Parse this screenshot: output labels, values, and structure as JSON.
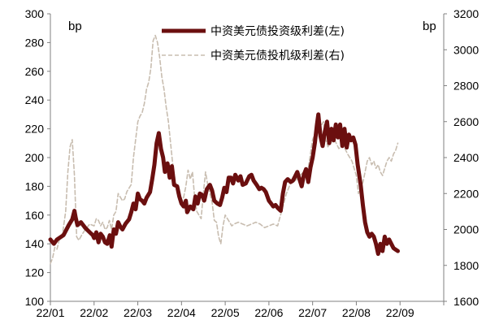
{
  "chart_data": {
    "type": "line",
    "left_unit": "bp",
    "right_unit": "bp",
    "left_axis": {
      "min": 100,
      "max": 300,
      "ticks": [
        100,
        120,
        140,
        160,
        180,
        200,
        220,
        240,
        260,
        280,
        300
      ]
    },
    "right_axis": {
      "min": 1600,
      "max": 3200,
      "ticks": [
        1600,
        1800,
        2000,
        2200,
        2400,
        2600,
        2800,
        3000,
        3200
      ]
    },
    "x_axis": {
      "min": 0,
      "max": 9,
      "ticks": [
        "22/01",
        "22/02",
        "22/03",
        "22/04",
        "22/05",
        "22/06",
        "22/07",
        "22/08",
        "22/09"
      ]
    },
    "legend_position": "top-center",
    "grid": false,
    "series": [
      {
        "name": "中资美元债投资级利差(左)",
        "axis": "left",
        "color": "#6b0f0f",
        "style": "solid",
        "points": [
          [
            0.0,
            143
          ],
          [
            0.08,
            140
          ],
          [
            0.15,
            143
          ],
          [
            0.3,
            146
          ],
          [
            0.42,
            153
          ],
          [
            0.5,
            157
          ],
          [
            0.55,
            163
          ],
          [
            0.58,
            158
          ],
          [
            0.62,
            153
          ],
          [
            0.7,
            155
          ],
          [
            0.8,
            151
          ],
          [
            0.9,
            148
          ],
          [
            0.97,
            146
          ],
          [
            1.0,
            144
          ],
          [
            1.05,
            148
          ],
          [
            1.1,
            141
          ],
          [
            1.15,
            147
          ],
          [
            1.2,
            145
          ],
          [
            1.25,
            141
          ],
          [
            1.3,
            140
          ],
          [
            1.36,
            146
          ],
          [
            1.4,
            138
          ],
          [
            1.45,
            150
          ],
          [
            1.5,
            147
          ],
          [
            1.55,
            155
          ],
          [
            1.6,
            152
          ],
          [
            1.65,
            150
          ],
          [
            1.72,
            154
          ],
          [
            1.8,
            157
          ],
          [
            1.85,
            162
          ],
          [
            1.9,
            168
          ],
          [
            1.95,
            164
          ],
          [
            2.0,
            175
          ],
          [
            2.05,
            171
          ],
          [
            2.1,
            170
          ],
          [
            2.15,
            168
          ],
          [
            2.2,
            172
          ],
          [
            2.28,
            176
          ],
          [
            2.33,
            185
          ],
          [
            2.38,
            195
          ],
          [
            2.43,
            210
          ],
          [
            2.48,
            217
          ],
          [
            2.53,
            206
          ],
          [
            2.58,
            200
          ],
          [
            2.62,
            190
          ],
          [
            2.68,
            196
          ],
          [
            2.73,
            186
          ],
          [
            2.78,
            194
          ],
          [
            2.83,
            181
          ],
          [
            2.9,
            180
          ],
          [
            2.95,
            173
          ],
          [
            3.0,
            168
          ],
          [
            3.05,
            166
          ],
          [
            3.1,
            170
          ],
          [
            3.13,
            162
          ],
          [
            3.2,
            166
          ],
          [
            3.27,
            164
          ],
          [
            3.32,
            173
          ],
          [
            3.37,
            168
          ],
          [
            3.42,
            175
          ],
          [
            3.47,
            174
          ],
          [
            3.52,
            170
          ],
          [
            3.58,
            178
          ],
          [
            3.65,
            181
          ],
          [
            3.7,
            177
          ],
          [
            3.75,
            170
          ],
          [
            3.82,
            168
          ],
          [
            3.88,
            167
          ],
          [
            3.93,
            172
          ],
          [
            3.98,
            179
          ],
          [
            4.03,
            176
          ],
          [
            4.08,
            186
          ],
          [
            4.13,
            186
          ],
          [
            4.18,
            182
          ],
          [
            4.23,
            188
          ],
          [
            4.3,
            184
          ],
          [
            4.35,
            187
          ],
          [
            4.4,
            181
          ],
          [
            4.47,
            182
          ],
          [
            4.55,
            187
          ],
          [
            4.6,
            188
          ],
          [
            4.65,
            184
          ],
          [
            4.72,
            181
          ],
          [
            4.78,
            178
          ],
          [
            4.83,
            179
          ],
          [
            4.88,
            178
          ],
          [
            4.93,
            176
          ],
          [
            5.0,
            170
          ],
          [
            5.05,
            168
          ],
          [
            5.1,
            166
          ],
          [
            5.15,
            167
          ],
          [
            5.2,
            165
          ],
          [
            5.27,
            163
          ],
          [
            5.32,
            175
          ],
          [
            5.37,
            183
          ],
          [
            5.43,
            185
          ],
          [
            5.5,
            183
          ],
          [
            5.55,
            184
          ],
          [
            5.6,
            187
          ],
          [
            5.65,
            190
          ],
          [
            5.7,
            185
          ],
          [
            5.75,
            180
          ],
          [
            5.8,
            188
          ],
          [
            5.85,
            192
          ],
          [
            5.9,
            183
          ],
          [
            5.95,
            193
          ],
          [
            6.0,
            200
          ],
          [
            6.05,
            210
          ],
          [
            6.1,
            223
          ],
          [
            6.13,
            230
          ],
          [
            6.18,
            215
          ],
          [
            6.23,
            208
          ],
          [
            6.28,
            218
          ],
          [
            6.33,
            225
          ],
          [
            6.38,
            210
          ],
          [
            6.43,
            220
          ],
          [
            6.48,
            212
          ],
          [
            6.53,
            223
          ],
          [
            6.58,
            214
          ],
          [
            6.63,
            223
          ],
          [
            6.68,
            208
          ],
          [
            6.73,
            220
          ],
          [
            6.78,
            207
          ],
          [
            6.83,
            216
          ],
          [
            6.88,
            212
          ],
          [
            6.93,
            214
          ],
          [
            6.98,
            209
          ],
          [
            7.03,
            195
          ],
          [
            7.1,
            181
          ],
          [
            7.15,
            167
          ],
          [
            7.2,
            155
          ],
          [
            7.25,
            148
          ],
          [
            7.3,
            145
          ],
          [
            7.35,
            147
          ],
          [
            7.4,
            145
          ],
          [
            7.45,
            140
          ],
          [
            7.5,
            133
          ],
          [
            7.55,
            140
          ],
          [
            7.6,
            135
          ],
          [
            7.65,
            145
          ],
          [
            7.7,
            140
          ],
          [
            7.75,
            143
          ],
          [
            7.8,
            140
          ],
          [
            7.85,
            137
          ],
          [
            7.9,
            136
          ],
          [
            7.95,
            135
          ]
        ]
      },
      {
        "name": "中资美元债投机级利差(右)",
        "axis": "right",
        "color": "#c8bdb0",
        "style": "dashed",
        "points": [
          [
            0.0,
            1810
          ],
          [
            0.05,
            1840
          ],
          [
            0.1,
            1900
          ],
          [
            0.15,
            1890
          ],
          [
            0.2,
            1940
          ],
          [
            0.28,
            1980
          ],
          [
            0.35,
            2100
          ],
          [
            0.4,
            2320
          ],
          [
            0.45,
            2460
          ],
          [
            0.5,
            2500
          ],
          [
            0.55,
            2300
          ],
          [
            0.6,
            1960
          ],
          [
            0.65,
            1940
          ],
          [
            0.72,
            1970
          ],
          [
            0.8,
            2000
          ],
          [
            0.9,
            2030
          ],
          [
            1.0,
            2020
          ],
          [
            1.05,
            2060
          ],
          [
            1.1,
            2050
          ],
          [
            1.15,
            2020
          ],
          [
            1.2,
            2040
          ],
          [
            1.25,
            2000
          ],
          [
            1.3,
            2010
          ],
          [
            1.35,
            2050
          ],
          [
            1.4,
            2000
          ],
          [
            1.45,
            2080
          ],
          [
            1.5,
            2100
          ],
          [
            1.55,
            2200
          ],
          [
            1.6,
            2180
          ],
          [
            1.65,
            2160
          ],
          [
            1.7,
            2170
          ],
          [
            1.75,
            2210
          ],
          [
            1.8,
            2230
          ],
          [
            1.85,
            2250
          ],
          [
            1.9,
            2400
          ],
          [
            1.95,
            2500
          ],
          [
            2.0,
            2600
          ],
          [
            2.05,
            2630
          ],
          [
            2.1,
            2650
          ],
          [
            2.15,
            2700
          ],
          [
            2.2,
            2780
          ],
          [
            2.25,
            2820
          ],
          [
            2.3,
            2900
          ],
          [
            2.35,
            3050
          ],
          [
            2.4,
            3080
          ],
          [
            2.45,
            3040
          ],
          [
            2.5,
            2960
          ],
          [
            2.55,
            2850
          ],
          [
            2.6,
            2780
          ],
          [
            2.65,
            2680
          ],
          [
            2.7,
            2600
          ],
          [
            2.75,
            2480
          ],
          [
            2.8,
            2360
          ],
          [
            2.85,
            2280
          ],
          [
            2.9,
            2200
          ],
          [
            2.95,
            2160
          ],
          [
            3.0,
            2150
          ],
          [
            3.05,
            2180
          ],
          [
            3.1,
            2240
          ],
          [
            3.15,
            2330
          ],
          [
            3.2,
            2280
          ],
          [
            3.25,
            2320
          ],
          [
            3.3,
            2180
          ],
          [
            3.35,
            2100
          ],
          [
            3.4,
            2080
          ],
          [
            3.45,
            2060
          ],
          [
            3.5,
            2200
          ],
          [
            3.55,
            2320
          ],
          [
            3.6,
            2250
          ],
          [
            3.65,
            2200
          ],
          [
            3.7,
            2150
          ],
          [
            3.75,
            2050
          ],
          [
            3.8,
            2040
          ],
          [
            3.85,
            1960
          ],
          [
            3.9,
            1920
          ],
          [
            3.95,
            2020
          ],
          [
            4.0,
            2080
          ],
          [
            4.05,
            2060
          ],
          [
            4.1,
            2040
          ],
          [
            4.15,
            2020
          ],
          [
            4.2,
            2030
          ],
          [
            4.3,
            2040
          ],
          [
            4.4,
            2030
          ],
          [
            4.5,
            2020
          ],
          [
            4.6,
            2030
          ],
          [
            4.7,
            2040
          ],
          [
            4.8,
            2030
          ],
          [
            4.9,
            2010
          ],
          [
            5.0,
            2020
          ],
          [
            5.1,
            2030
          ],
          [
            5.2,
            2020
          ],
          [
            5.3,
            2110
          ],
          [
            5.4,
            2200
          ],
          [
            5.5,
            2260
          ],
          [
            5.6,
            2270
          ],
          [
            5.7,
            2300
          ],
          [
            5.8,
            2320
          ],
          [
            5.9,
            2340
          ],
          [
            6.0,
            2500
          ],
          [
            6.1,
            2560
          ],
          [
            6.2,
            2580
          ],
          [
            6.25,
            2600
          ],
          [
            6.3,
            2500
          ],
          [
            6.35,
            2460
          ],
          [
            6.4,
            2480
          ],
          [
            6.5,
            2500
          ],
          [
            6.6,
            2450
          ],
          [
            6.7,
            2470
          ],
          [
            6.8,
            2420
          ],
          [
            6.9,
            2380
          ],
          [
            7.0,
            2300
          ],
          [
            7.05,
            2200
          ],
          [
            7.1,
            2240
          ],
          [
            7.15,
            2260
          ],
          [
            7.2,
            2320
          ],
          [
            7.25,
            2380
          ],
          [
            7.3,
            2400
          ],
          [
            7.35,
            2360
          ],
          [
            7.4,
            2380
          ],
          [
            7.45,
            2340
          ],
          [
            7.5,
            2360
          ],
          [
            7.55,
            2320
          ],
          [
            7.6,
            2300
          ],
          [
            7.65,
            2340
          ],
          [
            7.7,
            2380
          ],
          [
            7.75,
            2400
          ],
          [
            7.8,
            2380
          ],
          [
            7.85,
            2420
          ],
          [
            7.9,
            2440
          ],
          [
            7.95,
            2480
          ]
        ]
      }
    ]
  }
}
